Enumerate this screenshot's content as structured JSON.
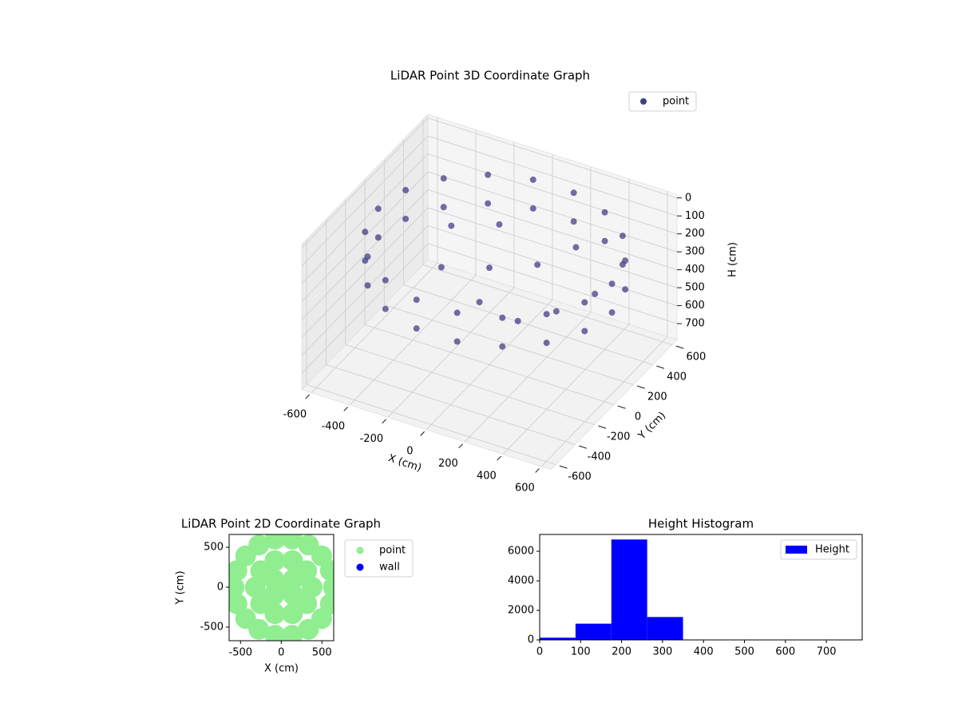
{
  "chart_data": [
    {
      "type": "scatter3d",
      "title": "LiDAR Point 3D Coordinate Graph",
      "xlabel": "X (cm)",
      "ylabel": "Y (cm)",
      "zlabel": "H (cm)",
      "xlim": [
        -650,
        650
      ],
      "ylim": [
        -650,
        650
      ],
      "zlim": [
        -20,
        790
      ],
      "zinverted": true,
      "xticks": [
        -600,
        -400,
        -200,
        0,
        200,
        400,
        600
      ],
      "yticks": [
        -600,
        -400,
        -200,
        0,
        200,
        400,
        600
      ],
      "zticks": [
        0,
        100,
        200,
        300,
        400,
        500,
        600,
        700
      ],
      "grid": true,
      "legend": "upper right",
      "series": [
        {
          "name": "point",
          "color": "#433e85",
          "x": [
            640,
            603,
            497,
            335,
            136,
            -76,
            -275,
            -437,
            -543,
            -580,
            -543,
            -437,
            -275,
            -76,
            136,
            335,
            497,
            603,
            640,
            603,
            497,
            335,
            136,
            -76,
            -275,
            -437,
            -543,
            -580,
            -543,
            -437,
            -275,
            -76,
            136,
            335,
            497,
            603,
            0,
            200,
            -200,
            100,
            -300,
            300,
            400,
            -100,
            250,
            500
          ],
          "y": [
            0,
            209,
            392,
            528,
            601,
            601,
            528,
            392,
            209,
            0,
            -209,
            -392,
            -528,
            -601,
            -601,
            -528,
            -392,
            -209,
            0,
            209,
            392,
            528,
            601,
            601,
            528,
            392,
            209,
            0,
            -209,
            -392,
            -528,
            -601,
            -601,
            -528,
            -392,
            -209,
            0,
            100,
            -100,
            -300,
            200,
            300,
            -100,
            300,
            -200,
            100
          ],
          "z": [
            120,
            120,
            120,
            120,
            120,
            120,
            120,
            120,
            120,
            120,
            120,
            120,
            120,
            120,
            120,
            120,
            120,
            120,
            280,
            280,
            280,
            280,
            280,
            280,
            280,
            280,
            280,
            280,
            280,
            280,
            280,
            280,
            280,
            280,
            280,
            280,
            250,
            220,
            260,
            240,
            230,
            200,
            300,
            210,
            350,
            280
          ]
        }
      ]
    },
    {
      "type": "scatter",
      "title": "LiDAR Point 2D Coordinate Graph",
      "xlabel": "X (cm)",
      "ylabel": "Y (cm)",
      "xlim": [
        -640,
        645
      ],
      "ylim": [
        -670,
        660
      ],
      "xticks": [
        -500,
        0,
        500
      ],
      "yticks": [
        -500,
        0,
        500
      ],
      "legend": "outside right",
      "series": [
        {
          "name": "point",
          "color": "#90ee90",
          "x": [
            640,
            603,
            497,
            335,
            136,
            -76,
            -275,
            -437,
            -543,
            -580,
            -543,
            -437,
            -275,
            -76,
            136,
            335,
            497,
            603,
            380,
            313,
            138,
            -78,
            -253,
            -320,
            -253,
            -78,
            138,
            313,
            30,
            150,
            -90,
            150,
            -90
          ],
          "values": [
            0,
            209,
            392,
            528,
            601,
            601,
            528,
            392,
            209,
            0,
            -209,
            -392,
            -528,
            -601,
            -601,
            -528,
            -392,
            -209,
            0,
            206,
            333,
            333,
            206,
            0,
            -206,
            -333,
            -333,
            -206,
            0,
            100,
            -100,
            -100,
            100
          ]
        },
        {
          "name": "wall",
          "color": "#0000ff",
          "x": [],
          "values": []
        }
      ]
    },
    {
      "type": "histogram",
      "title": "Height Histogram",
      "bins": [
        0,
        87.5,
        175,
        262.5,
        350,
        437.5,
        525,
        612.5,
        700,
        787.5
      ],
      "xlim": [
        0,
        787.5
      ],
      "ylim": [
        0,
        7140
      ],
      "xticks": [
        0,
        100,
        200,
        300,
        400,
        500,
        600,
        700
      ],
      "yticks": [
        0,
        2000,
        4000,
        6000
      ],
      "legend": "upper right",
      "series": [
        {
          "name": "Height",
          "color": "#0000ff",
          "values": [
            150,
            1100,
            6800,
            1550,
            8,
            5,
            3,
            2,
            1
          ]
        }
      ]
    }
  ]
}
